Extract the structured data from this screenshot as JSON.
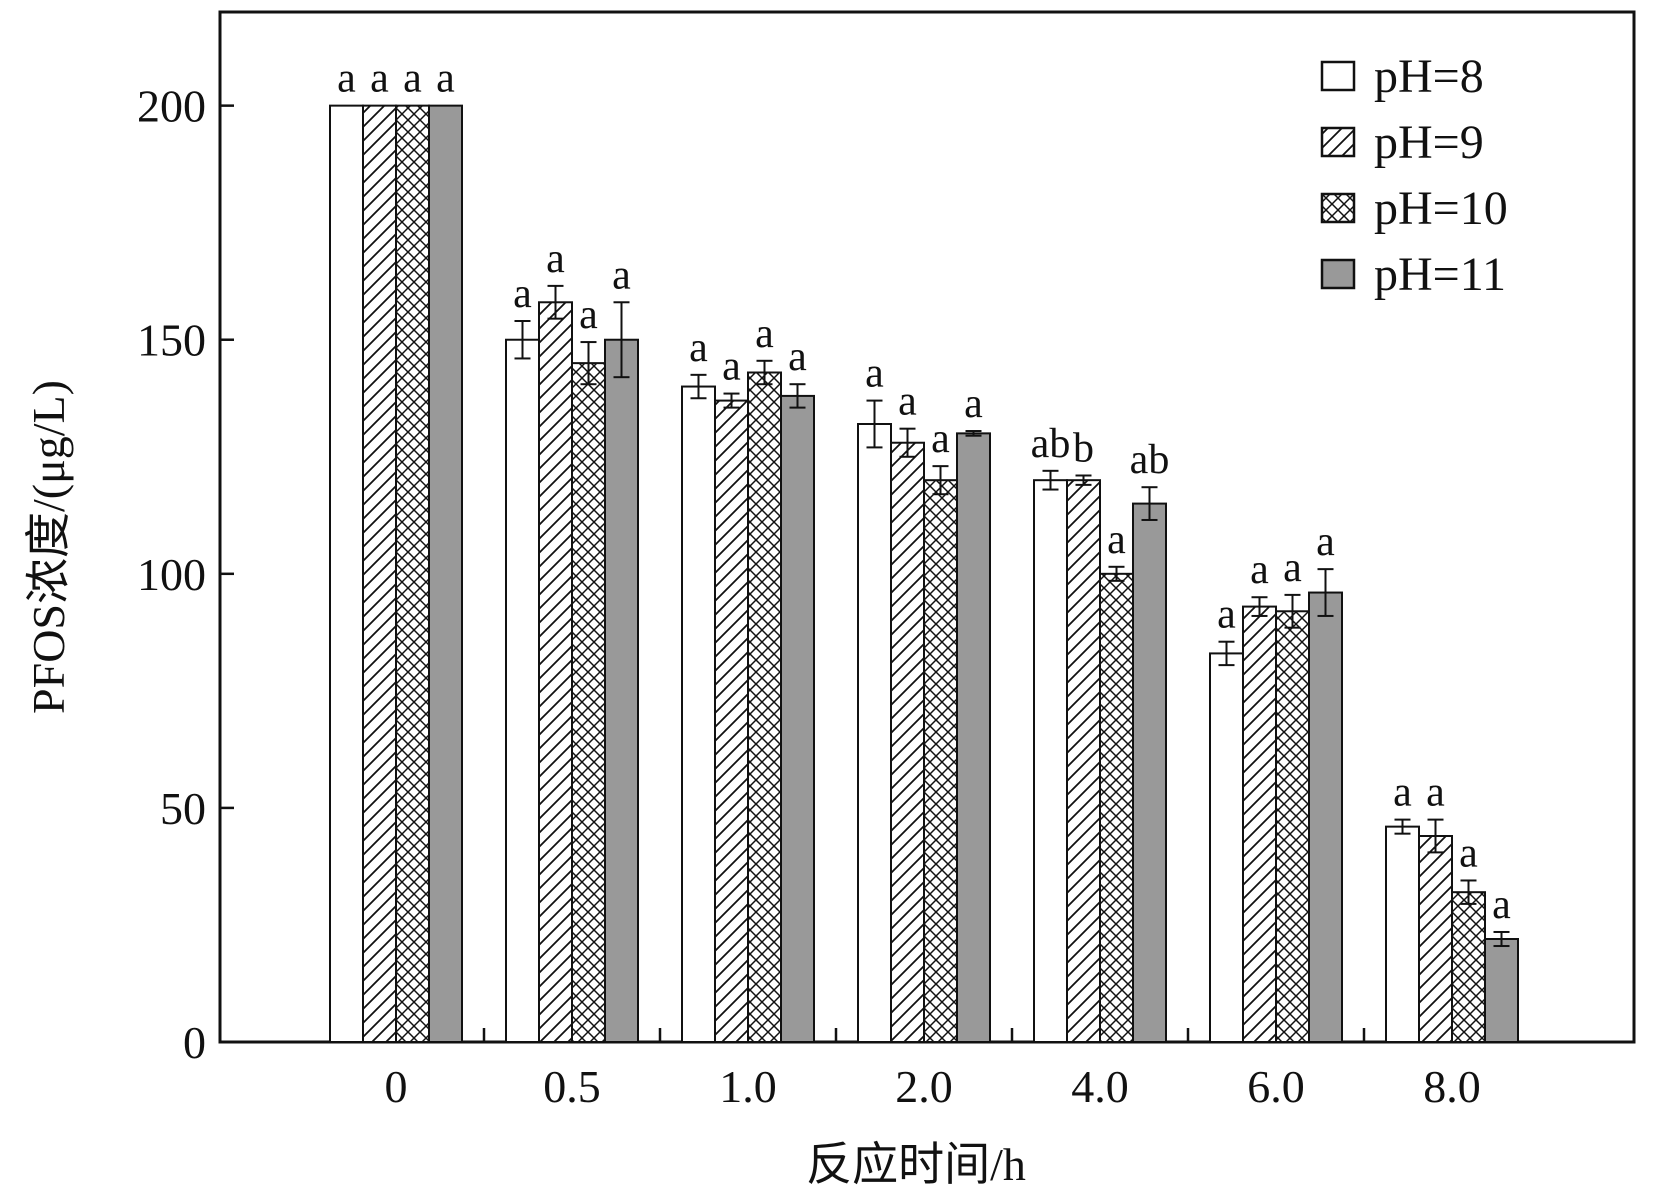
{
  "chart_data": {
    "type": "bar",
    "xlabel": "反应时间/h",
    "ylabel": "PFOS浓度/(μg/L)",
    "ylim": [
      0,
      220
    ],
    "yticks": [
      0,
      50,
      100,
      150,
      200
    ],
    "grid": false,
    "legend_position": "top-right",
    "categories": [
      "0",
      "0.5",
      "1.0",
      "2.0",
      "4.0",
      "6.0",
      "8.0"
    ],
    "series": [
      {
        "name": "pH=8",
        "pattern": "blank",
        "fill": "#ffffff",
        "values": [
          200,
          150,
          140,
          132,
          120,
          83,
          46
        ],
        "errors": [
          0,
          4,
          2.5,
          5,
          2,
          2.5,
          1.5
        ],
        "labels": [
          "a",
          "a",
          "a",
          "a",
          "ab",
          "a",
          "a"
        ]
      },
      {
        "name": "pH=9",
        "pattern": "hatch",
        "fill": "#ffffff",
        "values": [
          200,
          158,
          137,
          128,
          120,
          93,
          44
        ],
        "errors": [
          0,
          3.5,
          1.5,
          3,
          1,
          2,
          3.5
        ],
        "labels": [
          "a",
          "a",
          "a",
          "a",
          "b",
          "a",
          "a"
        ]
      },
      {
        "name": "pH=10",
        "pattern": "crosshatch",
        "fill": "#ffffff",
        "values": [
          200,
          145,
          143,
          120,
          100,
          92,
          32
        ],
        "errors": [
          0,
          4.5,
          2.5,
          3,
          1.5,
          3.5,
          2.5
        ],
        "labels": [
          "a",
          "a",
          "a",
          "a",
          "a",
          "a",
          "a"
        ]
      },
      {
        "name": "pH=11",
        "pattern": "solid",
        "fill": "#999999",
        "values": [
          200,
          150,
          138,
          130,
          115,
          96,
          22
        ],
        "errors": [
          0,
          8,
          2.5,
          0.5,
          3.5,
          5,
          1.5
        ],
        "labels": [
          "a",
          "a",
          "a",
          "a",
          "ab",
          "a",
          "a"
        ]
      }
    ]
  }
}
